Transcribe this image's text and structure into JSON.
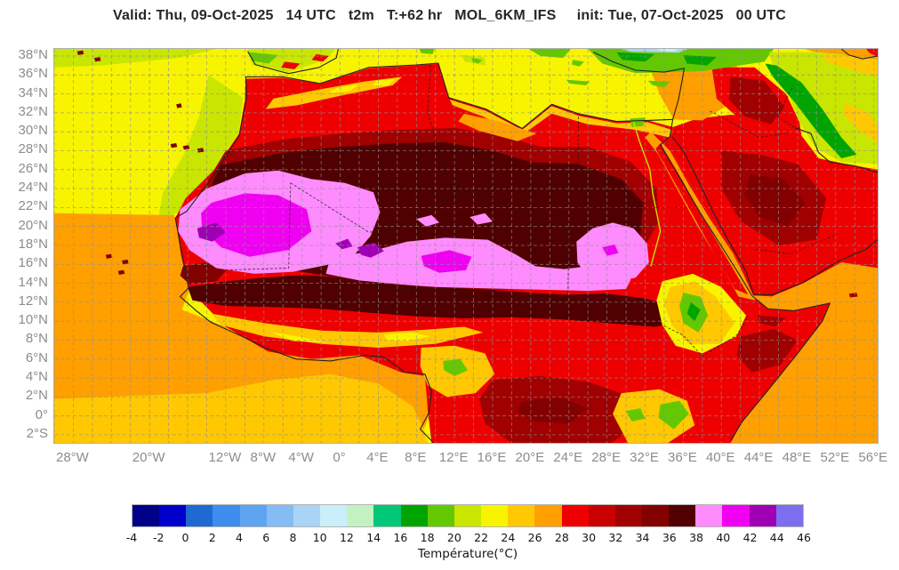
{
  "title": "Valid: Thu, 09-Oct-2025   14 UTC   t2m   T:+62 hr   MOL_6KM_IFS     init: Tue, 07-Oct-2025   00 UTC",
  "axes": {
    "lon": {
      "min": -30.0,
      "max": 56.4,
      "ticks": [
        {
          "v": -28,
          "label": "28°W"
        },
        {
          "v": -20,
          "label": "20°W"
        },
        {
          "v": -12,
          "label": "12°W"
        },
        {
          "v": -8,
          "label": "8°W"
        },
        {
          "v": -4,
          "label": "4°W"
        },
        {
          "v": 0,
          "label": "0°"
        },
        {
          "v": 4,
          "label": "4°E"
        },
        {
          "v": 8,
          "label": "8°E"
        },
        {
          "v": 12,
          "label": "12°E"
        },
        {
          "v": 16,
          "label": "16°E"
        },
        {
          "v": 20,
          "label": "20°E"
        },
        {
          "v": 24,
          "label": "24°E"
        },
        {
          "v": 28,
          "label": "28°E"
        },
        {
          "v": 32,
          "label": "32°E"
        },
        {
          "v": 36,
          "label": "36°E"
        },
        {
          "v": 40,
          "label": "40°E"
        },
        {
          "v": 44,
          "label": "44°E"
        },
        {
          "v": 48,
          "label": "48°E"
        },
        {
          "v": 52,
          "label": "52°E"
        },
        {
          "v": 56,
          "label": "56°E"
        }
      ]
    },
    "lat": {
      "min": -2.85,
      "max": 38.75,
      "ticks": [
        {
          "v": 38,
          "label": "38°N"
        },
        {
          "v": 36,
          "label": "36°N"
        },
        {
          "v": 34,
          "label": "34°N"
        },
        {
          "v": 32,
          "label": "32°N"
        },
        {
          "v": 30,
          "label": "30°N"
        },
        {
          "v": 28,
          "label": "28°N"
        },
        {
          "v": 26,
          "label": "26°N"
        },
        {
          "v": 24,
          "label": "24°N"
        },
        {
          "v": 22,
          "label": "22°N"
        },
        {
          "v": 20,
          "label": "20°N"
        },
        {
          "v": 18,
          "label": "18°N"
        },
        {
          "v": 16,
          "label": "16°N"
        },
        {
          "v": 14,
          "label": "14°N"
        },
        {
          "v": 12,
          "label": "12°N"
        },
        {
          "v": 10,
          "label": "10°N"
        },
        {
          "v": 8,
          "label": "8°N"
        },
        {
          "v": 6,
          "label": "6°N"
        },
        {
          "v": 4,
          "label": "4°N"
        },
        {
          "v": 2,
          "label": "2°N"
        },
        {
          "v": 0,
          "label": "0°"
        },
        {
          "v": -2,
          "label": "2°S"
        }
      ]
    },
    "grid_step": 2
  },
  "legend": {
    "min": -4,
    "max": 46,
    "step": 2,
    "axis_label": "Température(°C)",
    "tick_labels": [
      "-4",
      "-2",
      "0",
      "2",
      "4",
      "6",
      "8",
      "10",
      "12",
      "14",
      "16",
      "18",
      "20",
      "22",
      "24",
      "26",
      "28",
      "30",
      "32",
      "34",
      "36",
      "38",
      "40",
      "42",
      "44",
      "46"
    ],
    "colors": [
      "#000089",
      "#0000CD",
      "#1E6AD2",
      "#3E8DEE",
      "#5FA4F0",
      "#84BCF4",
      "#A8D4F6",
      "#C9F0FA",
      "#C2F2C0",
      "#00C878",
      "#00A400",
      "#64C800",
      "#C8E600",
      "#F8F400",
      "#FFC800",
      "#FFA000",
      "#EE0000",
      "#C80000",
      "#A00000",
      "#820000",
      "#500000",
      "#FF8CFF",
      "#F000F0",
      "#A000B4",
      "#7D6EF0"
    ]
  },
  "map": {
    "field": [
      {
        "n": "sea-base",
        "c": "#F8F400",
        "p": "-30,38.75 56.4,38.75 56.4,-2.85 -30,-2.85"
      },
      {
        "n": "nw-atlantic-band",
        "c": "#C8E600",
        "p": "-30,38.75 -13,38.75 -17,37.8 -25,37 -30,36.8"
      },
      {
        "n": "morocco-sea-band",
        "c": "#C8E600",
        "p": "-13.8,36 -10.2,33.6 -10.6,30 -13.2,26 -16.2,22 -19.2,20.2 -18.6,23.6 -16.4,27.6 -14.8,31.6"
      },
      {
        "n": "sw-ocean",
        "c": "#FFA000",
        "p": "-30,21.4 -17.4,21.2 -16.6,17 -15.8,13.4 -16.6,11.2 -12,9.4 -7.6,6.8 -3,6 2,6.4 6.4,4.6 9,4.2 9.6,0.6 8.2,-2.85 -30,-2.85"
      },
      {
        "n": "south-atlantic-amber",
        "c": "#FFC800",
        "p": "-30,1.8 -14,2.4 -7,3.8 -1,4.4 4,3.4 7.6,1 8.8,-1.4 9.2,-2.85 -30,-2.85"
      },
      {
        "n": "africa-land",
        "c": "#EE0000",
        "p": "-17.3,20.9 -16.2,23 -13.2,26 -10.6,29.8 -10,33.4 -9.9,35.6 -6,35.7 -2.1,35.1 3,36.7 8,37 10.3,37.2 11.4,33.6 15.3,32.4 19.1,30.4 22.2,32.9 25,31.9 29,31.1 32.3,31.2 34.9,30.5 34.6,28.2 36.8,24.4 39,20.8 41.4,17 43.2,12.7 44.9,11.3 47.6,11.1 50.9,11.8 51.4,11.9 50.6,10 48,6.6 44.8,2.6 42.2,-0.6 41,-2.85 9.6,-2.85 9.2,0.5 8.9,4.2 6.4,4.6 2,6.4 -3,6 -7.6,6.8 -12,9.4 -15.9,13.4 -16.7,17"
      },
      {
        "n": "arabia-land",
        "c": "#EE0000",
        "p": "34.9,30.5 37.5,31.4 41,31.8 45.5,31.3 48.4,29.6 50.2,27.2 53,26.6 56.4,26 56.4,15.6 52.6,16.2 48.6,14 45.3,12.6 43.3,12.7 41.4,17 39,20.8 36.8,24.4 34.6,28.2"
      },
      {
        "n": "indian-ocean",
        "c": "#FFA000",
        "p": "41,-2.85 42.2,-0.6 44.8,2.6 48,6.6 50.6,10 51.4,11.9 47.6,11.1 44.9,11.3 43.3,12.7 45.3,12.6 48.6,14 52.6,16.2 56.4,15.6 56.4,-2.85"
      },
      {
        "n": "levant-orange",
        "c": "#FFA000",
        "p": "32.8,38.75 40,38.75 42,36.5 41,33 38,31.2 35,31.3 33.5,34 32.6,36.5"
      },
      {
        "n": "iraq-red",
        "c": "#EE0000",
        "p": "39,36.8 43.5,36.8 46.8,34 48.2,31 48.4,29.6 45.5,31.3 41.5,31.7 39.5,33.5"
      },
      {
        "n": "iraq-dark",
        "c": "#A00000",
        "p": "41,35.8 44.5,35.4 46.6,32.6 45.2,30.8 42.5,31.6 40.8,33.4"
      },
      {
        "n": "arabia-dark",
        "c": "#A00000",
        "p": "40,28 44,27.6 48,26.6 51,23 50,18.6 46,18 42,20.6 40,24"
      },
      {
        "n": "arabia-maroon",
        "c": "#820000",
        "p": "43,25.5 46.5,25 48.8,22.5 47,20 44,21 42.4,23.4"
      },
      {
        "n": "sahara-darkred",
        "c": "#A00000",
        "p": "-12,28 -6,29.2 0,29.8 6,30.2 12,30.4 17,29.6 21,28.4 26,28.4 30.5,26.8 33.2,24 33.4,20.5 31.5,17 27.5,14.6 22,13.6 16,13.3 10,13.5 4,14 -2,14.8 -8,16 -12.5,18.4 -14.2,21.5 -13.8,25"
      },
      {
        "n": "sahara-maroon",
        "c": "#500000",
        "p": "-12.5,26.5 -6,27.8 0,28.4 6,28.8 11,28.9 16,28 20,26.8 25,26.6 29.5,25 31.8,22.5 31.5,19 29,16.2 25,14.6 20,13.9 14,13.7 8,13.9 2,14.4 -4,15.2 -9,16.6 -12.4,19 -13.6,22.2 -13.4,24.6"
      },
      {
        "n": "sahel-maroon",
        "c": "#500000",
        "p": "-16,13.6 -12,14.2 -8,14.6 -4,14.9 0,14.6 4,14.1 8,13.7 12,13.5 16,13.3 20,13 24,12.8 28,12.9 32,12.4 35.5,11.4 36.5,10 33,9.4 28,9.8 23,10.2 18,10.4 13,10.3 8,10.5 3,10.9 -2,11.3 -7,11.5 -12,11.6 -15.5,12.2"
      },
      {
        "n": "senegal-dark",
        "c": "#820000",
        "p": "-16.5,15.8 -13.5,16.3 -12,15.3 -13,14.2 -15.8,13.9 -16.8,14.8"
      },
      {
        "n": "west-pink",
        "c": "#FF8CFF",
        "p": "-16.8,21.8 -14,24 -10,25.6 -6.5,25.9 -3,25 0.5,24.6 3.5,23.6 4.2,21.5 3.2,19 1.5,17 -1.5,15.9 -5,15.2 -9,15 -13,15.6 -15.8,17.5 -17,19.5"
      },
      {
        "n": "sahel-pink",
        "c": "#FF8CFF",
        "p": "-1,16.8 3,17.3 7,18.4 11,18.8 15.5,18.6 18.5,17 20.5,15.8 23.5,15.5 26,15.8 28.5,15.2 30.5,14.4 30,13.4 26,13.2 22,13.3 18,13.4 14,13.5 10,13.6 6,13.9 2,14.3 -1.5,15"
      },
      {
        "n": "sudan-pink",
        "c": "#FF8CFF",
        "p": "24.8,18.4 26.5,19.8 28.6,20.4 30.8,19.8 32.2,18.2 32.4,16.2 31,14.6 28.4,14 26,14.6 24.9,16.2"
      },
      {
        "n": "pink-spot-1",
        "c": "#FF8CFF",
        "p": "8,20.8 9.6,21.2 10.4,20.4 9,20"
      },
      {
        "n": "pink-spot-2",
        "c": "#FF8CFF",
        "p": "13.6,21 15.2,21.4 16,20.5 14.4,20.2"
      },
      {
        "n": "west-magenta",
        "c": "#F000F0",
        "p": "-13.5,22.5 -10,23.5 -6.5,23.3 -3.5,21.8 -3,19.5 -5.5,17.5 -9.5,16.8 -12.5,17.8 -14.5,19.8 -14.6,21.4"
      },
      {
        "n": "central-magenta",
        "c": "#F000F0",
        "p": "8.5,16.9 11.5,17.5 13.8,16.8 13.2,15.4 10.4,15.1 8.8,15.8"
      },
      {
        "n": "sudan-magenta",
        "c": "#F000F0",
        "p": "27.5,17.8 28.8,18.1 29.2,17.2 28,16.9"
      },
      {
        "n": "mauritania-purple",
        "c": "#A000B4",
        "p": "-15,19.8 -13,20.4 -12,19.4 -13.4,18.4 -14.8,18.8"
      },
      {
        "n": "niger-purple",
        "c": "#A000B4",
        "p": "1.8,17.8 3.6,18.3 4.6,17.4 3.2,16.7 2.2,17"
      },
      {
        "n": "niger-purple-2",
        "c": "#A000B4",
        "p": "-0.5,18.2 0.8,18.7 1.3,17.9 0.2,17.6"
      },
      {
        "n": "guinea-amber",
        "c": "#FFC800",
        "p": "-13.5,10.8 -8,9.8 -2,9 4,8.8 9,9.1 13,9.4 15,8.8 10,7.6 4,7.2 -2,7.6 -8,8.4 -12.5,9.6"
      },
      {
        "n": "guinea-yellow",
        "c": "#F8F400",
        "p": "-7.5,8.9 -4,8.3 -1.5,7.8 -5,7.9"
      },
      {
        "n": "nigeria-yellow",
        "c": "#F8F400",
        "p": "4.6,8.6 7.6,8.8 9.4,8.4 7,7.9 4.9,8"
      },
      {
        "n": "cameroon-amber",
        "c": "#FFC800",
        "p": "8.5,7.2 12,7.4 15.2,6.6 16.2,4.4 14.2,2.4 11.2,2 9.2,3.2 8.4,5.2"
      },
      {
        "n": "cameroon-green",
        "c": "#64C800",
        "p": "10.8,5.8 12.6,6 13.4,4.8 12,4.2 10.9,4.8"
      },
      {
        "n": "congo-dark",
        "c": "#A00000",
        "p": "16,3.8 21,4.2 26,3.6 30,2.2 31.2,-0.8 28.5,-2.85 18,-2.85 15.2,-0.8 14.6,1.8"
      },
      {
        "n": "congo-maroon",
        "c": "#820000",
        "p": "19,1.5 23,2 26,0.8 24,-0.8 20.5,-0.6 18.6,0.4"
      },
      {
        "n": "ethiopia-yellow",
        "c": "#F8F400",
        "p": "33.8,14.2 37,15 40,13.6 42.6,10.6 41.6,8.4 38,6.6 35.2,7.4 33.8,9.6 33.2,12.2"
      },
      {
        "n": "ethiopia-amber",
        "c": "#FFC800",
        "p": "34.6,13.6 37.2,14.2 39.4,12.6 41.4,9.8 39.8,7.6 36.6,7.6 34.8,9.6 34,11.8"
      },
      {
        "n": "ethiopia-green",
        "c": "#64C800",
        "p": "36,13 37.8,12.6 38.6,10.6 37.6,8.8 36,9.8 35.6,11.6"
      },
      {
        "n": "ethiopia-darkgreen",
        "c": "#00A400",
        "p": "36.8,12 37.8,11.2 37.2,10 36.4,10.8"
      },
      {
        "n": "somalia-dark",
        "c": "#A00000",
        "p": "42,8.4 45.5,9.2 48,8 46.2,5.4 43.2,4.6 41.6,6.4"
      },
      {
        "n": "north-somalia-dark",
        "c": "#A00000",
        "p": "43.8,10.6 46.8,10.4 45.6,9.4 43.9,9.8"
      },
      {
        "n": "kenya-amber",
        "c": "#FFC800",
        "p": "29.5,2.4 33.5,2.8 36.4,1.6 37.2,-1 34.4,-2.85 30.2,-2.85 28.6,0.2"
      },
      {
        "n": "kenya-green",
        "c": "#64C800",
        "p": "33.6,1.2 35.6,1.6 36.6,0.2 35,-1.4 33.4,-0.2"
      },
      {
        "n": "uganda-green",
        "c": "#64C800",
        "p": "30,0.5 31.5,0.8 32,-0.3 30.6,-0.6"
      },
      {
        "n": "redsea-orange",
        "c": "#FFA000",
        "p": "32.6,30 34.6,28 36.6,24.4 38.8,20.8 41.2,17.2 43,13.4 43.6,12.2 41.8,12.6 39.8,16.2 37.4,20.2 35.2,24.2 33.4,27.6 32,29.4"
      },
      {
        "n": "redsea-red",
        "c": "#EE0000",
        "p": "33.6,28.8 35.6,25.4 37.7,21.6 39.9,17.8 42,14.2 42.8,12.8 41.4,13.4 39.2,17.2 37,21.2 34.9,25 33.1,28.2"
      },
      {
        "n": "egypt-coast-amber",
        "c": "#FFC800",
        "p": "11.5,33.4 15.3,32.2 19.1,30.2 22.2,32.7 25,31.7 29,30.9 32.3,31 34.8,30.2 34.6,29.4 31,30.2 26,30.8 22.2,31.9 19,29.6 15,31.6 11.8,32.8"
      },
      {
        "n": "libya-orange",
        "c": "#FFA000",
        "p": "13,31.9 17,31 20.6,29.8 18.6,29 14.6,30.1 12.4,31.1"
      },
      {
        "n": "atlas-amber",
        "c": "#FFC800",
        "p": "-7,33.5 -2,34.5 2.5,35.3 6.5,35.8 5.5,34.9 0.5,33.9 -4.5,32.8 -7.8,32.4"
      },
      {
        "n": "atlas-yellow",
        "c": "#F8F400",
        "p": "-0.5,34.6 2,35 1,34.3 -1.2,34.1"
      },
      {
        "n": "atlas-yellow-2",
        "c": "#F8F400",
        "p": "3.8,35.4 5.8,35.6 5,34.9 3.4,34.9"
      },
      {
        "n": "nile-delta",
        "c": "#64C800",
        "p": "30.4,31.4 32,31.5 31.8,30.6 30.6,30.5"
      },
      {
        "n": "iberia",
        "c": "#C8E600",
        "p": "-9.7,38.75 -0.5,38.75 -1.5,37.6 -5.5,36.3 -9.2,37"
      },
      {
        "n": "iberia-green",
        "c": "#64C800",
        "p": "-9.5,38.4 -6.5,38.1 -7.5,37.2 -9.3,37.5"
      },
      {
        "n": "iberia-red",
        "c": "#EE0000",
        "p": "-5.8,37.4 -4.2,37.2 -4.8,36.6 -6.2,36.8"
      },
      {
        "n": "iberia-red-2",
        "c": "#EE0000",
        "p": "-2.5,38.2 -1.2,38 -1.8,37.4 -3,37.6"
      },
      {
        "n": "sicily",
        "c": "#C8E600",
        "p": "12.7,38.1 15.1,37.9 15.3,37 13.1,37.4"
      },
      {
        "n": "sicily-green",
        "c": "#64C800",
        "p": "13.8,37.8 14.9,37.6 14.5,37.2 13.9,37.4"
      },
      {
        "n": "sardinia",
        "c": "#64C800",
        "p": "8.3,38.75 9.9,38.75 9.7,38.2 8.5,38.3"
      },
      {
        "n": "greece-green",
        "c": "#64C800",
        "p": "19.8,38.75 24.2,38.75 23.4,37.8 21,38"
      },
      {
        "n": "cyclades",
        "c": "#64C800",
        "p": "24.4,37.6 25.6,37.4 25.1,36.9 24.3,37.1"
      },
      {
        "n": "crete",
        "c": "#64C800",
        "p": "23.7,35.5 26.2,35.3 25.8,34.9 24.1,35.1"
      },
      {
        "n": "turkey-green",
        "c": "#64C800",
        "p": "26,38.75 45.5,38.75 44.5,37.4 38,36.4 31,36.2 27.5,37.2"
      },
      {
        "n": "turkey-darkgreen",
        "c": "#00A400",
        "p": "29,38.4 33,38.2 32,37.4 29.6,37.6"
      },
      {
        "n": "turkey-darkgreen-2",
        "c": "#00A400",
        "p": "36,38.1 39.5,37.9 38.5,37 36.4,37.2"
      },
      {
        "n": "turkey-cyan",
        "c": "#A8D4F6",
        "p": "29.5,38.75 36.5,38.75 35.5,38.35 30.5,38.45"
      },
      {
        "n": "turkey-lightcyan",
        "c": "#C9F0FA",
        "p": "33.2,38.75 35.6,38.75 35,38.5 33.7,38.55"
      },
      {
        "n": "cyprus",
        "c": "#64C800",
        "p": "32.3,35.4 34.6,35.3 34,34.7 32.8,34.9"
      },
      {
        "n": "iran",
        "c": "#C8E600",
        "p": "45,38.4 56.4,38.4 56.4,26.6 52.6,26.8 49.8,28.4 48.2,31 46.8,34.6 45.4,37"
      },
      {
        "n": "zagros-green",
        "c": "#00A400",
        "p": "45.8,37 48.4,35.2 50.6,32.4 52.6,29.4 54.2,27.6 52.6,27.2 50.2,29.8 47.8,33 45.4,35.8 44.6,37.2"
      },
      {
        "n": "iran-amber",
        "c": "#FFC800",
        "p": "50.5,38.1 56.4,38.1 56.4,35.8 52.8,36.8 50.9,37.5"
      },
      {
        "n": "iran-amber-2",
        "c": "#FFC800",
        "p": "53,33 55.5,32 56.4,30.5 56.4,28.8 54.4,30.2 52.8,31.8"
      },
      {
        "n": "caspian-orange",
        "c": "#FFA000",
        "p": "48.8,38.75 56.4,38.75 56.4,37.6 52.4,38.2 49.6,38.45"
      },
      {
        "n": "ne-corner-red",
        "c": "#EE0000",
        "p": "55.2,38.75 56.4,38.75 56.4,37.9 55.5,38.35"
      },
      {
        "n": "azores-1",
        "c": "#820000",
        "p": "-27.6,38.5 -27,38.6 -26.9,38.2 -27.5,38.1"
      },
      {
        "n": "azores-2",
        "c": "#820000",
        "p": "-25.8,37.8 -25.2,37.9 -25.1,37.5 -25.7,37.4"
      },
      {
        "n": "madeira",
        "c": "#820000",
        "p": "-17.2,32.9 -16.7,33 -16.6,32.6 -17.1,32.5"
      },
      {
        "n": "canary-1",
        "c": "#820000",
        "p": "-17.8,28.7 -17.2,28.8 -17.1,28.4 -17.7,28.3"
      },
      {
        "n": "canary-2",
        "c": "#820000",
        "p": "-16.5,28.5 -15.9,28.6 -15.8,28.2 -16.4,28.1"
      },
      {
        "n": "canary-3",
        "c": "#820000",
        "p": "-15,28.2 -14.4,28.3 -14.3,27.9 -14.9,27.8"
      },
      {
        "n": "capeverde-1",
        "c": "#820000",
        "p": "-24.6,17 -24,17.1 -23.9,16.7 -24.5,16.6"
      },
      {
        "n": "capeverde-2",
        "c": "#820000",
        "p": "-23.3,15.3 -22.7,15.4 -22.6,15 -23.2,14.9"
      },
      {
        "n": "capeverde-3",
        "c": "#820000",
        "p": "-22.9,16.4 -22.3,16.5 -22.2,16.1 -22.8,16"
      },
      {
        "n": "socotra",
        "c": "#A00000",
        "p": "53.4,12.9 54.2,13 54.3,12.6 53.5,12.5"
      }
    ],
    "rivers": [
      {
        "n": "nile",
        "c": "#C8E600",
        "p": "30.8,31 31.4,29 32.5,26 32.8,23.5 33.6,19.5 32.6,15.8"
      }
    ],
    "coasts": [
      "-9.9,35.8 -6,35.8 -2.1,35.1 3,36.8 8,37.05 10.3,37.25 11.4,33.6 15.3,32.4 19.1,30.35 22.2,32.9 25,31.9 29,31.1 32.3,31.2 34.9,31.3",
      "-9.9,35.8 -9.8,33.6 -10.6,29.6 -13.1,25.6 -16.1,21.6 -17.3,20.9 -16.5,16.6 -15.9,13.5 -16.8,12.6 -15.1,11.1 -13.6,9.9 -10.1,8.3 -7.9,7.2 -4.6,6 -1,5.8 2.6,6.4 4.6,6.2 6.8,4.6 8.9,4.4 9.6,2.6 9.3,0.3 8.4,-1.4 9.8,-2.85",
      "34.9,31.3 34.6,29.5 33.6,28.6 35.6,25.2 37.8,21.4 40.2,17.6 42.2,14.4 43.2,12.7",
      "43.2,12.7 44.9,11.3 47.6,11.1 50.9,11.8 51.4,11.9 50.6,10 48,6.6 44.8,2.6 42.2,-0.6 41,-2.6",
      "34.8,29.5 36,28 37.6,24.8 39.2,21.4 40.8,18.4 42.6,15.2 43.4,12.8 45.4,12.8 48.6,14.1 52.4,16.4 55.2,17.6 56.4,18.6",
      "47.8,30.4 49.4,29.8 50.2,27.8 51.4,26.8 54,26.4 56.4,25.7",
      "26.6,38.4 28.6,37.4 31,36.5 34,36.3 36.1,36.7 35.9,35.5 35.5,33.4 34.9,31.3",
      "-9.7,38.5 -8.9,37.1 -6.4,36.4 -5.4,36.15 -2.2,36.8 -0.4,37.8 -0.2,38.75",
      "52.6,38.75 53.4,38.1 54.8,37.7 56.4,38"
    ],
    "borders": [
      "25,31.6 24.9,22",
      "24.9,22 36.8,22",
      "-5.2,24.6 3,19.4 5.8,19.6 11.8,23.4 15,23.2",
      "9.5,37.1 9.2,32 11.5,24.5 15,23.2",
      "24,19.8 23.9,12.9",
      "-12,15.4 -5.4,15.6 -5.2,24.6",
      "3.8,13.6 14.2,13.2",
      "15,23.2 23.9,19.8",
      "38.8,32.2 44,29.4 47,29.9",
      "43.6,17.6 47.2,17.1 52,19.1",
      "47.4,34.6 45.9,31.6 47.9,30.3",
      "34,9.5 36,8.5 38,6.3 41.6,8.5 42.8,10.5"
    ]
  }
}
